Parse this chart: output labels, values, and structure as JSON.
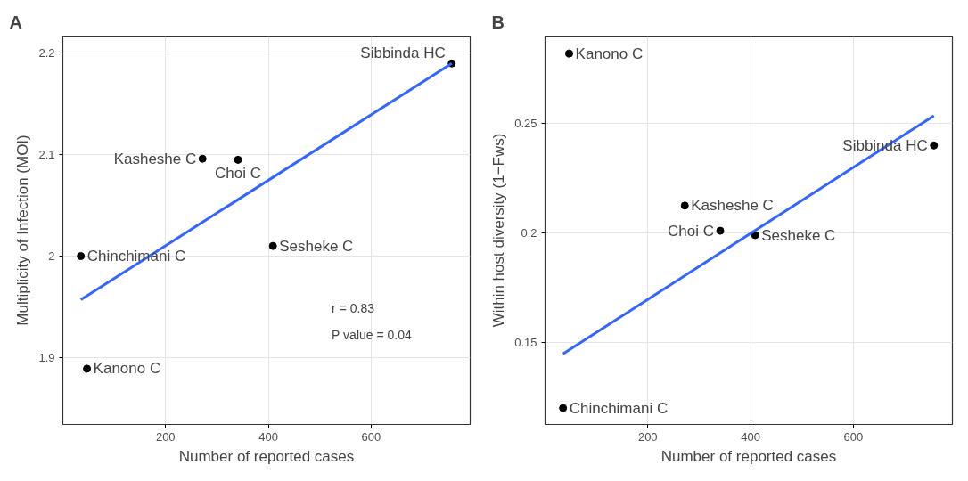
{
  "chart_data": [
    {
      "type": "scatter",
      "title": "A",
      "xlabel": "Number of reported cases",
      "ylabel": "Multiplicity of Infection (MOI)",
      "xlim": [
        0,
        793
      ],
      "ylim": [
        1.834,
        2.217
      ],
      "xticks": [
        200,
        400,
        600
      ],
      "yticks": [
        1.9,
        2.0,
        2.1,
        2.2
      ],
      "grid": true,
      "series": [
        {
          "marker": "circle",
          "color": "#000000",
          "x": [
            35,
            47,
            272,
            341,
            409,
            757
          ],
          "values": [
            2.0,
            1.889,
            2.096,
            2.095,
            2.01,
            2.19
          ]
        },
        {
          "type": "line",
          "marker": "none",
          "color": "#3366ff",
          "x": [
            35,
            757
          ],
          "values": [
            1.957,
            2.19
          ]
        }
      ],
      "annotations": [
        {
          "text": "Chinchimani C",
          "x": 35,
          "y": 2.0
        },
        {
          "text": "Kanono C",
          "x": 47,
          "y": 1.889
        },
        {
          "text": "Kasheshe C",
          "x": 272,
          "y": 2.096
        },
        {
          "text": "Choi C",
          "x": 341,
          "y": 2.095
        },
        {
          "text": "Sesheke C",
          "x": 409,
          "y": 2.01
        },
        {
          "text": "Sibbinda HC",
          "x": 757,
          "y": 2.19
        },
        "r = 0.83",
        "P value = 0.04"
      ]
    },
    {
      "type": "scatter",
      "title": "B",
      "xlabel": "Number of reported cases",
      "ylabel": "Within host diversity (1−Fws)",
      "xlim": [
        0,
        793
      ],
      "ylim": [
        0.1125,
        0.29
      ],
      "xticks": [
        200,
        400,
        600
      ],
      "yticks": [
        0.15,
        0.2,
        0.25
      ],
      "grid": true,
      "series": [
        {
          "marker": "circle",
          "color": "#000000",
          "x": [
            35,
            47,
            272,
            341,
            409,
            757
          ],
          "values": [
            0.12,
            0.282,
            0.2125,
            0.201,
            0.199,
            0.24
          ]
        },
        {
          "type": "line",
          "marker": "none",
          "color": "#3366ff",
          "x": [
            35,
            757
          ],
          "values": [
            0.1448,
            0.2536
          ]
        }
      ],
      "annotations": [
        {
          "text": "Chinchimani C",
          "x": 35,
          "y": 0.12
        },
        {
          "text": "Kanono C",
          "x": 47,
          "y": 0.282
        },
        {
          "text": "Kasheshe C",
          "x": 272,
          "y": 0.2125
        },
        {
          "text": "Choi C",
          "x": 341,
          "y": 0.201
        },
        {
          "text": "Sesheke C",
          "x": 409,
          "y": 0.199
        },
        {
          "text": "Sibbinda HC",
          "x": 757,
          "y": 0.24
        }
      ]
    }
  ]
}
